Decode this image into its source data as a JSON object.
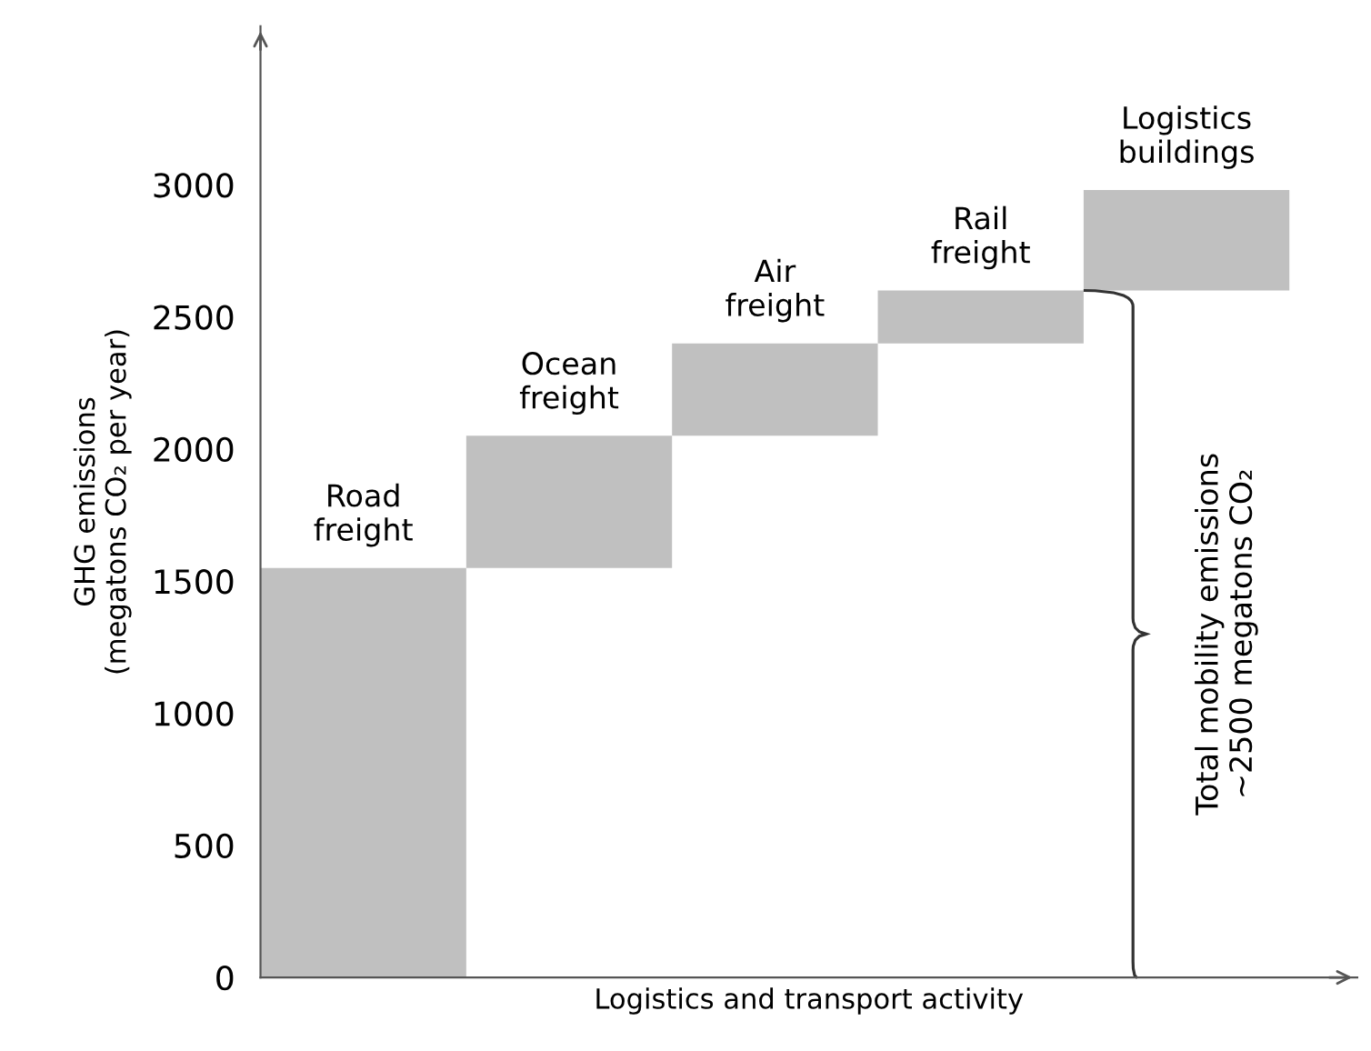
{
  "chart_data": {
    "type": "bar",
    "categories": [
      "Road freight",
      "Ocean freight",
      "Air freight",
      "Rail freight",
      "Logistics buildings"
    ],
    "values": [
      1550,
      500,
      350,
      200,
      380
    ],
    "base": [
      0,
      1550,
      2050,
      2400,
      2600
    ],
    "color": "#c0c0c0",
    "xlabel": "Logistics and transport activity",
    "ylabel": "GHG emissions\n(megatons CO₂ per year)",
    "ylim": [
      0,
      3600
    ],
    "yticks": [
      0,
      500,
      1000,
      1500,
      2000,
      2500,
      3000
    ],
    "tick_labels": "y",
    "grid": false,
    "annotations": [
      "Total mobility emissions\n~2500 megatons CO₂"
    ]
  }
}
